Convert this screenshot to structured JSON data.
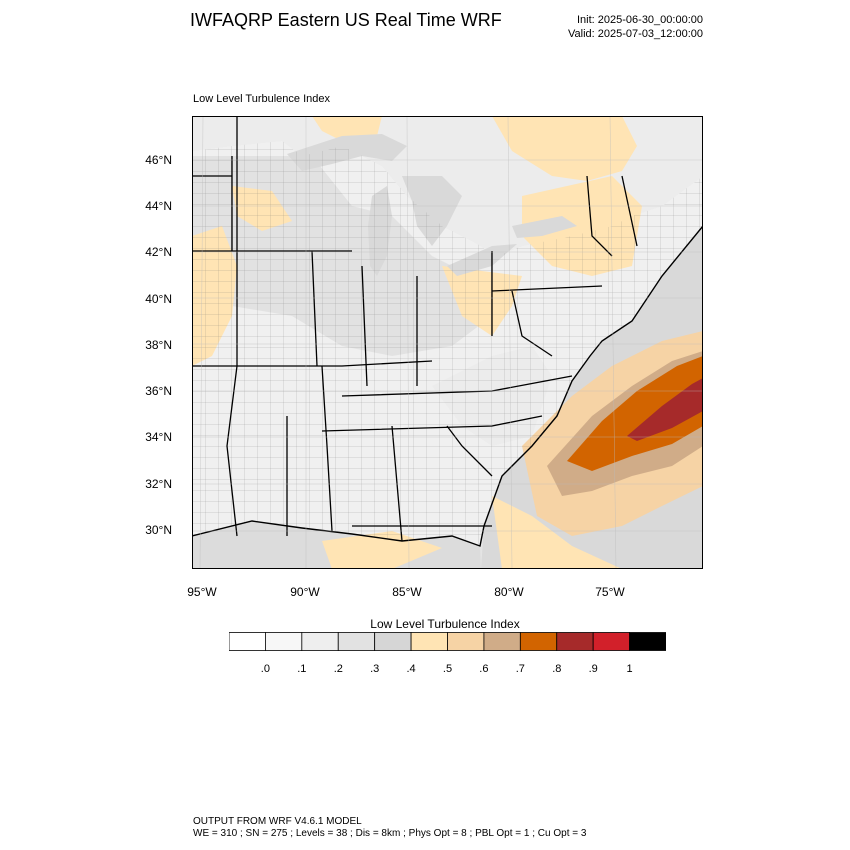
{
  "header": {
    "title": "IWFAQRP Eastern US Real Time WRF",
    "init": "Init: 2025-06-30_00:00:00",
    "valid": "Valid: 2025-07-03_12:00:00"
  },
  "panel": {
    "label": "Low Level Turbulence Index"
  },
  "axes": {
    "lat_labels": [
      "46°N",
      "44°N",
      "42°N",
      "40°N",
      "38°N",
      "36°N",
      "34°N",
      "32°N",
      "30°N"
    ],
    "lon_labels": [
      "95°W",
      "90°W",
      "85°W",
      "80°W",
      "75°W"
    ]
  },
  "colorbar": {
    "title": "Low Level Turbulence Index",
    "labels": [
      ".0",
      ".1",
      ".2",
      ".3",
      ".4",
      ".5",
      ".6",
      ".7",
      ".8",
      ".9",
      "1"
    ],
    "colors": [
      "#ffffff",
      "#f7f7f7",
      "#eeeeee",
      "#e2e2e2",
      "#d6d6d6",
      "#ffe4b4",
      "#f6d3a5",
      "#d0ac88",
      "#d26400",
      "#a62a2a",
      "#d2202a",
      "#000000"
    ]
  },
  "footer": {
    "line1": "OUTPUT FROM WRF V4.6.1 MODEL",
    "line2": "WE = 310 ; SN = 275 ; Levels = 38 ; Dis = 8km ; Phys Opt = 8 ; PBL Opt = 1 ; Cu Opt = 3"
  }
}
